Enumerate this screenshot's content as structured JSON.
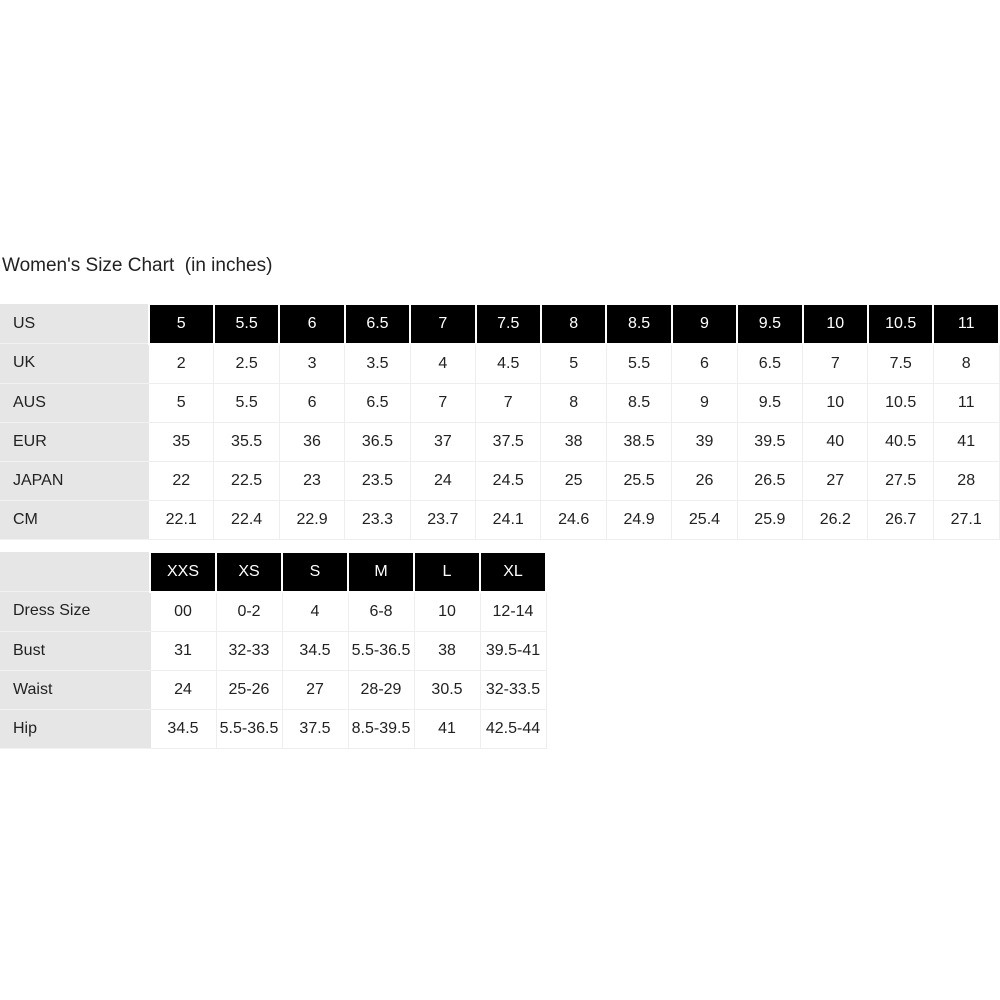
{
  "title": "Women's Size Chart  (in inches)",
  "shoe_table": {
    "header_label": "US",
    "header": [
      "5",
      "5.5",
      "6",
      "6.5",
      "7",
      "7.5",
      "8",
      "8.5",
      "9",
      "9.5",
      "10",
      "10.5",
      "11"
    ],
    "rows": [
      {
        "label": "UK",
        "values": [
          "2",
          "2.5",
          "3",
          "3.5",
          "4",
          "4.5",
          "5",
          "5.5",
          "6",
          "6.5",
          "7",
          "7.5",
          "8"
        ]
      },
      {
        "label": "AUS",
        "values": [
          "5",
          "5.5",
          "6",
          "6.5",
          "7",
          "7",
          "8",
          "8.5",
          "9",
          "9.5",
          "10",
          "10.5",
          "11"
        ]
      },
      {
        "label": "EUR",
        "values": [
          "35",
          "35.5",
          "36",
          "36.5",
          "37",
          "37.5",
          "38",
          "38.5",
          "39",
          "39.5",
          "40",
          "40.5",
          "41"
        ]
      },
      {
        "label": "JAPAN",
        "values": [
          "22",
          "22.5",
          "23",
          "23.5",
          "24",
          "24.5",
          "25",
          "25.5",
          "26",
          "26.5",
          "27",
          "27.5",
          "28"
        ]
      },
      {
        "label": "CM",
        "values": [
          "22.1",
          "22.4",
          "22.9",
          "23.3",
          "23.7",
          "24.1",
          "24.6",
          "24.9",
          "25.4",
          "25.9",
          "26.2",
          "26.7",
          "27.1"
        ]
      }
    ]
  },
  "dress_table": {
    "header_label": "",
    "header": [
      "XXS",
      "XS",
      "S",
      "M",
      "L",
      "XL"
    ],
    "rows": [
      {
        "label": "Dress Size",
        "values": [
          "00",
          "0-2",
          "4",
          "6-8",
          "10",
          "12-14"
        ]
      },
      {
        "label": "Bust",
        "values": [
          "31",
          "32-33",
          "34.5",
          "5.5-36.5",
          "38",
          "39.5-41"
        ]
      },
      {
        "label": "Waist",
        "values": [
          "24",
          "25-26",
          "27",
          "28-29",
          "30.5",
          "32-33.5"
        ]
      },
      {
        "label": "Hip",
        "values": [
          "34.5",
          "5.5-36.5",
          "37.5",
          "8.5-39.5",
          "41",
          "42.5-44"
        ]
      }
    ]
  },
  "colors": {
    "header_bg": "#000000",
    "label_bg": "#e6e6e6"
  }
}
